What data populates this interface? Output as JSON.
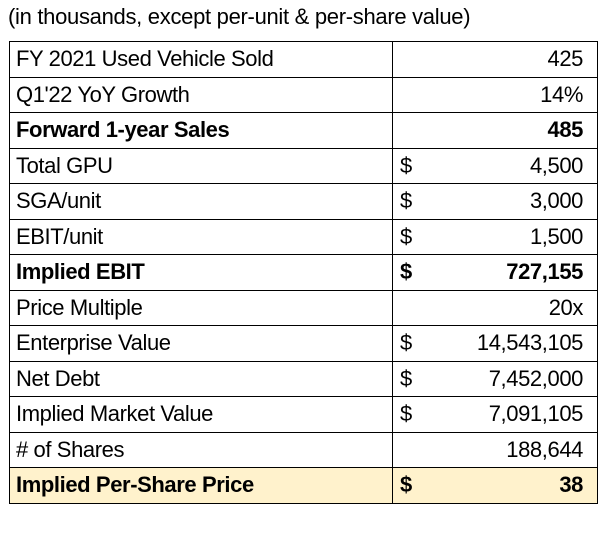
{
  "note": "(in thousands, except per-unit & per-share value)",
  "highlight_color": "#FFF2CC",
  "rows": [
    {
      "label": "FY 2021 Used Vehicle Sold",
      "currency": "",
      "value": "425",
      "bold": false,
      "highlight": false
    },
    {
      "label": "Q1'22 YoY Growth",
      "currency": "",
      "value": "14%",
      "bold": false,
      "highlight": false
    },
    {
      "label": "Forward 1-year Sales",
      "currency": "",
      "value": "485",
      "bold": true,
      "highlight": false
    },
    {
      "label": "Total GPU",
      "currency": "$",
      "value": "4,500",
      "bold": false,
      "highlight": false
    },
    {
      "label": "SGA/unit",
      "currency": "$",
      "value": "3,000",
      "bold": false,
      "highlight": false
    },
    {
      "label": "EBIT/unit",
      "currency": "$",
      "value": "1,500",
      "bold": false,
      "highlight": false
    },
    {
      "label": "Implied EBIT",
      "currency": "$",
      "value": "727,155",
      "bold": true,
      "highlight": false
    },
    {
      "label": "Price Multiple",
      "currency": "",
      "value": "20x",
      "bold": false,
      "highlight": false
    },
    {
      "label": "Enterprise Value",
      "currency": "$",
      "value": "14,543,105",
      "bold": false,
      "highlight": false
    },
    {
      "label": "Net Debt",
      "currency": "$",
      "value": "7,452,000",
      "bold": false,
      "highlight": false
    },
    {
      "label": "Implied Market Value",
      "currency": "$",
      "value": "7,091,105",
      "bold": false,
      "highlight": false
    },
    {
      "label": "# of Shares",
      "currency": "",
      "value": "188,644",
      "bold": false,
      "highlight": false
    },
    {
      "label": "Implied Per-Share Price",
      "currency": "$",
      "value": "38",
      "bold": true,
      "highlight": true
    }
  ]
}
